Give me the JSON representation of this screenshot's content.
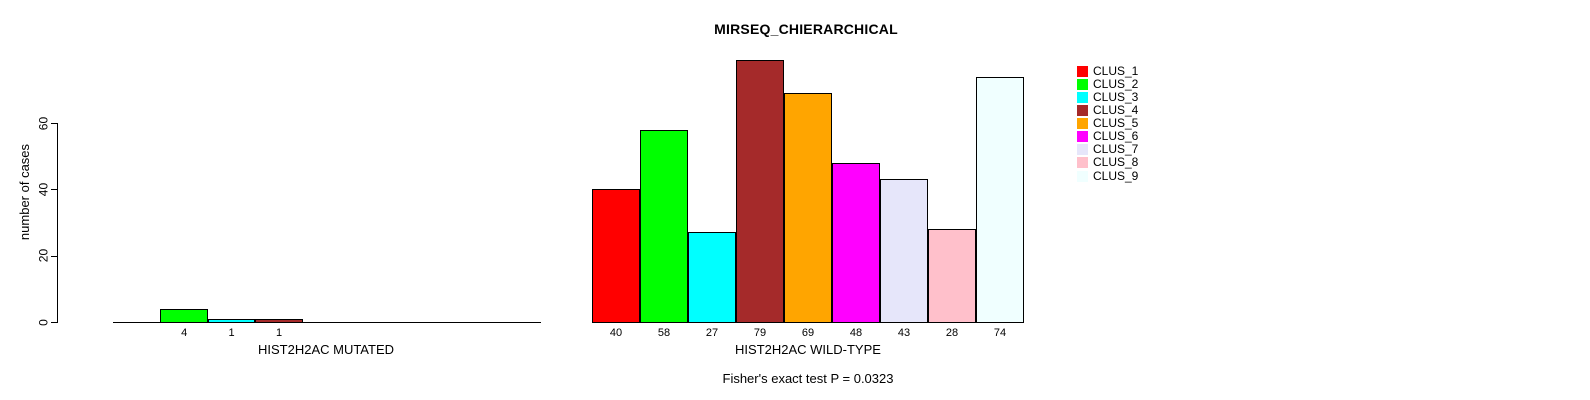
{
  "chart_data": {
    "type": "bar",
    "title": "MIRSEQ_CHIERARCHICAL",
    "ylabel": "number of cases",
    "yticks": [
      0,
      20,
      40,
      60
    ],
    "ylim": [
      0,
      79
    ],
    "grid": false,
    "legend_position": "right",
    "categories": [
      "CLUS_1",
      "CLUS_2",
      "CLUS_3",
      "CLUS_4",
      "CLUS_5",
      "CLUS_6",
      "CLUS_7",
      "CLUS_8",
      "CLUS_9"
    ],
    "series_colors": [
      "#FF0000",
      "#00FF00",
      "#00FFFF",
      "#A52A2A",
      "#FFA500",
      "#FF00FF",
      "#E6E6FA",
      "#FFC0CB",
      "#F0FFFF"
    ],
    "groups": [
      {
        "label": "HIST2H2AC MUTATED",
        "values": [
          0,
          4,
          1,
          1,
          0,
          0,
          0,
          0,
          0
        ]
      },
      {
        "label": "HIST2H2AC WILD-TYPE",
        "values": [
          40,
          58,
          27,
          79,
          69,
          48,
          43,
          28,
          74
        ]
      }
    ],
    "annotation": "Fisher's exact test P = 0.0323"
  }
}
